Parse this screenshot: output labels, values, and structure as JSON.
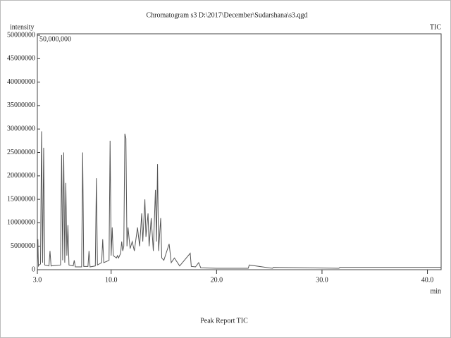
{
  "chart_data": {
    "type": "line",
    "title": "Chromatogram s3 D:\\2017\\December\\Sudarshana\\s3.qgd",
    "y_label": "intensity",
    "x_label": "min",
    "annotation": "50,000,000",
    "xlim": [
      3.0,
      41.3
    ],
    "xticks": [
      {
        "value": 3,
        "label": "3.0"
      },
      {
        "value": 10,
        "label": "10.0"
      },
      {
        "value": 20,
        "label": "20.0"
      },
      {
        "value": 30,
        "label": "30.0"
      },
      {
        "value": 40,
        "label": "40.0"
      }
    ],
    "ylim": [
      0,
      50000000
    ],
    "yticks": [
      0,
      5000000,
      10000000,
      15000000,
      20000000,
      25000000,
      30000000,
      35000000,
      40000000,
      45000000,
      50000000
    ],
    "grid": false,
    "x": [
      3.0,
      3.05,
      3.1,
      3.15,
      3.3,
      3.4,
      3.5,
      3.6,
      3.7,
      4.1,
      4.2,
      4.3,
      5.2,
      5.3,
      5.4,
      5.5,
      5.6,
      5.7,
      5.8,
      5.9,
      6.0,
      6.4,
      6.5,
      6.6,
      7.2,
      7.3,
      7.4,
      7.8,
      7.9,
      8.0,
      8.5,
      8.6,
      8.7,
      9.1,
      9.2,
      9.3,
      9.8,
      9.9,
      10.0,
      10.1,
      10.2,
      10.5,
      10.6,
      10.7,
      10.9,
      11.0,
      11.1,
      11.2,
      11.3,
      11.4,
      11.5,
      11.6,
      11.8,
      12.0,
      12.2,
      12.5,
      12.7,
      12.9,
      13.0,
      13.2,
      13.3,
      13.5,
      13.6,
      13.8,
      14.0,
      14.2,
      14.3,
      14.4,
      14.5,
      14.7,
      14.8,
      15.0,
      15.5,
      15.7,
      16.0,
      16.5,
      17.5,
      17.6,
      18.0,
      18.3,
      18.5,
      20.0,
      23.0,
      23.1,
      25.3,
      25.4,
      31.6,
      31.7,
      41.3
    ],
    "series": [
      {
        "name": "TIC",
        "color": "#555555",
        "values": [
          1000000,
          6500000,
          800000,
          1000000,
          1200000,
          29500000,
          1500000,
          26000000,
          1000000,
          800000,
          4000000,
          800000,
          1000000,
          24500000,
          2000000,
          25000000,
          1500000,
          18500000,
          3000000,
          9500000,
          1000000,
          800000,
          2000000,
          600000,
          600000,
          25000000,
          700000,
          700000,
          4000000,
          600000,
          800000,
          19500000,
          1000000,
          1500000,
          6500000,
          1500000,
          2000000,
          27500000,
          3000000,
          9000000,
          3000000,
          2500000,
          3000000,
          2500000,
          3500000,
          6000000,
          4000000,
          5000000,
          29000000,
          28000000,
          5000000,
          9000000,
          4500000,
          6000000,
          4000000,
          9000000,
          5000000,
          12000000,
          6000000,
          15000000,
          7000000,
          12000000,
          5000000,
          11000000,
          4000000,
          17000000,
          6000000,
          22500000,
          4000000,
          11000000,
          2500000,
          2000000,
          5500000,
          1500000,
          2500000,
          800000,
          3500000,
          700000,
          600000,
          1500000,
          400000,
          300000,
          300000,
          1000000,
          300000,
          500000,
          300000,
          500000,
          500000
        ]
      }
    ]
  },
  "footer": "Peak Report TIC"
}
